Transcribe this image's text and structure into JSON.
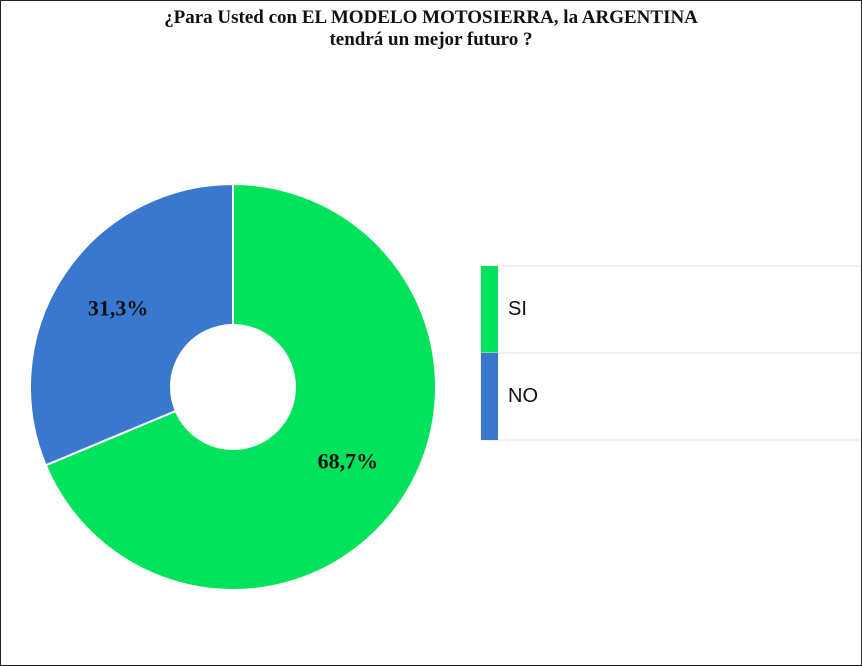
{
  "chart_data": {
    "type": "pie",
    "title": "¿Para Usted con EL MODELO MOTOSIERRA, la ARGENTINA tendrá un mejor futuro ?",
    "categories": [
      "SI",
      "NO"
    ],
    "values": [
      68.7,
      31.3
    ],
    "value_labels": [
      "68,7%",
      "31,3%"
    ],
    "colors": [
      "#00e25b",
      "#3a78d0"
    ],
    "donut": true
  }
}
